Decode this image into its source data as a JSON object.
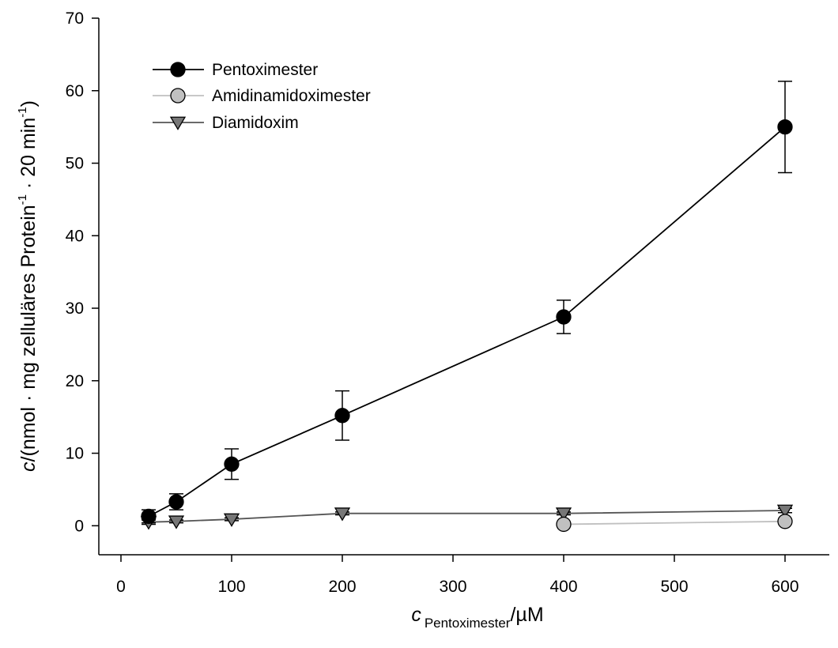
{
  "chart_data": {
    "type": "line",
    "title": "",
    "x_axis": {
      "label_var": "c",
      "label_sub": "Pentoximester",
      "label_unit": "/µM",
      "range": [
        -20,
        640
      ],
      "ticks": [
        0,
        100,
        200,
        300,
        400,
        500,
        600
      ],
      "tick_labels": [
        "0",
        "100",
        "200",
        "300",
        "400",
        "500",
        "600"
      ]
    },
    "y_axis": {
      "label_var": "c",
      "label_pre": "/(nmol · mg zelluläres Protein",
      "label_sup1": "-1",
      "label_mid": " · 20 min",
      "label_sup2": "-1",
      "label_post": ")",
      "range": [
        -4,
        70
      ],
      "ticks": [
        0,
        10,
        20,
        30,
        40,
        50,
        60,
        70
      ],
      "tick_labels": [
        "0",
        "10",
        "20",
        "30",
        "40",
        "50",
        "60",
        "70"
      ]
    },
    "grid": false,
    "legend_position": "top-left",
    "series": [
      {
        "name": "Pentoximester",
        "marker": "circle",
        "line_color": "#000000",
        "fill_color": "#000000",
        "points": [
          {
            "x": 25,
            "y": 1.3,
            "err": 0.9
          },
          {
            "x": 50,
            "y": 3.3,
            "err": 1.1
          },
          {
            "x": 100,
            "y": 8.5,
            "err": 2.1
          },
          {
            "x": 200,
            "y": 15.2,
            "err": 3.4
          },
          {
            "x": 400,
            "y": 28.8,
            "err": 2.3
          },
          {
            "x": 600,
            "y": 55.0,
            "err": 6.3
          }
        ]
      },
      {
        "name": "Amidinamidoximester",
        "marker": "circle",
        "line_color": "#c0c0c0",
        "fill_color": "#c0c0c0",
        "points": [
          {
            "x": 400,
            "y": 0.2,
            "err": 0
          },
          {
            "x": 600,
            "y": 0.6,
            "err": 0
          }
        ]
      },
      {
        "name": "Diamidoxim",
        "marker": "triangle-down",
        "line_color": "#555555",
        "fill_color": "#777777",
        "points": [
          {
            "x": 25,
            "y": 0.5,
            "err": 0.3
          },
          {
            "x": 50,
            "y": 0.6,
            "err": 0.2
          },
          {
            "x": 100,
            "y": 0.9,
            "err": 0.2
          },
          {
            "x": 200,
            "y": 1.7,
            "err": 0.2
          },
          {
            "x": 400,
            "y": 1.7,
            "err": 0.2
          },
          {
            "x": 600,
            "y": 2.1,
            "err": 0.3
          }
        ]
      }
    ]
  }
}
